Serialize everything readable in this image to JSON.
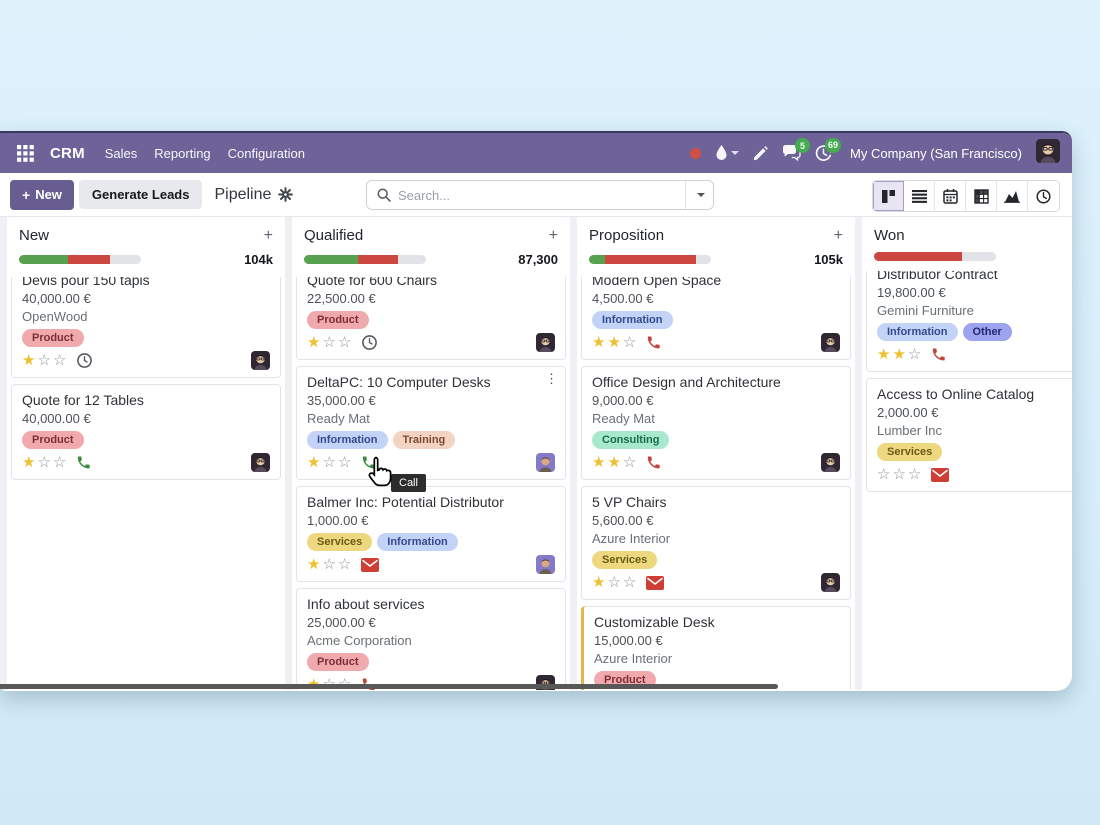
{
  "nav": {
    "app": "CRM",
    "menus": [
      "Sales",
      "Reporting",
      "Configuration"
    ],
    "message_count": "5",
    "activity_count": "69",
    "company": "My Company (San Francisco)",
    "status_color": "#cf4f44"
  },
  "toolbar": {
    "new": "New",
    "generate_leads": "Generate Leads",
    "title": "Pipeline",
    "search_placeholder": "Search...",
    "views": [
      "kanban",
      "list",
      "calendar",
      "pivot",
      "graph",
      "activity"
    ],
    "active_view": "kanban"
  },
  "tooltip": "Call",
  "colors": {
    "navbar": "#6e6399",
    "progress_green": "#57a14f",
    "progress_red": "#cb473f",
    "star_filled": "#eec02c"
  },
  "tag_colors": {
    "Product": {
      "bg": "#f0a9ad",
      "fg": "#7c2d35"
    },
    "Information": {
      "bg": "#c3d2f7",
      "fg": "#354a8c"
    },
    "Training": {
      "bg": "#f3d4c3",
      "fg": "#7d4a2f"
    },
    "Services": {
      "bg": "#eed87f",
      "fg": "#6a5a17"
    },
    "Consulting": {
      "bg": "#a8e8cd",
      "fg": "#1b6a4e"
    },
    "Other": {
      "bg": "#9da4ed",
      "fg": "#23276e"
    }
  },
  "columns": [
    {
      "name": "New",
      "count": "104k",
      "progress": {
        "green": 40,
        "red": 35
      },
      "cards": [
        {
          "title": "Devis pour 150 tapis",
          "amount": "40,000.00 €",
          "company": "OpenWood",
          "tags": [
            "Product"
          ],
          "stars": 1,
          "activity": "clock",
          "avatar": "dark",
          "clipped_top": true
        },
        {
          "title": "Quote for 12 Tables",
          "amount": "40,000.00 €",
          "tags": [
            "Product"
          ],
          "stars": 1,
          "activity": "phone-green",
          "avatar": "dark"
        }
      ]
    },
    {
      "name": "Qualified",
      "count": "87,300",
      "progress": {
        "green": 44,
        "red": 33
      },
      "cards": [
        {
          "title": "Quote for 600 Chairs",
          "amount": "22,500.00 €",
          "tags": [
            "Product"
          ],
          "stars": 1,
          "activity": "clock",
          "avatar": "dark",
          "clipped_top": true
        },
        {
          "title": "DeltaPC: 10 Computer Desks",
          "amount": "35,000.00 €",
          "company": "Ready Mat",
          "tags": [
            "Information",
            "Training"
          ],
          "stars": 1,
          "activity": "phone-green",
          "avatar": "purple",
          "menu": true
        },
        {
          "title": "Balmer Inc: Potential Distributor",
          "amount": "1,000.00 €",
          "tags": [
            "Services",
            "Information"
          ],
          "stars": 1,
          "activity": "envelope",
          "avatar": "purple"
        },
        {
          "title": "Info about services",
          "amount": "25,000.00 €",
          "company": "Acme Corporation",
          "tags": [
            "Product"
          ],
          "stars": 1,
          "activity": "phone-red",
          "avatar": "dark"
        }
      ]
    },
    {
      "name": "Proposition",
      "count": "105k",
      "progress": {
        "green": 13,
        "red": 75
      },
      "cards": [
        {
          "title": "Modern Open Space",
          "amount": "4,500.00 €",
          "tags": [
            "Information"
          ],
          "stars": 2,
          "activity": "phone-red",
          "avatar": "dark",
          "clipped_top": true
        },
        {
          "title": "Office Design and Architecture",
          "amount": "9,000.00 €",
          "company": "Ready Mat",
          "tags": [
            "Consulting"
          ],
          "stars": 2,
          "activity": "phone-red",
          "avatar": "dark"
        },
        {
          "title": "5 VP Chairs",
          "amount": "5,600.00 €",
          "company": "Azure Interior",
          "tags": [
            "Services"
          ],
          "stars": 1,
          "activity": "envelope",
          "avatar": "dark"
        },
        {
          "title": "Customizable Desk",
          "amount": "15,000.00 €",
          "company": "Azure Interior",
          "tags": [
            "Product"
          ],
          "stars": 1,
          "activity": "phone-red",
          "avatar": "purple",
          "highlight": true
        }
      ]
    },
    {
      "name": "Won",
      "count": "",
      "progress": {
        "green": 0,
        "red": 72
      },
      "cards": [
        {
          "title": "Distributor Contract",
          "amount": "19,800.00 €",
          "company": "Gemini Furniture",
          "tags": [
            "Information",
            "Other"
          ],
          "stars": 2,
          "activity": "phone-red",
          "clipped_top": true
        },
        {
          "title": "Access to Online Catalog",
          "amount": "2,000.00 €",
          "company": "Lumber Inc",
          "tags": [
            "Services"
          ],
          "stars": 0,
          "activity": "envelope"
        }
      ]
    }
  ]
}
